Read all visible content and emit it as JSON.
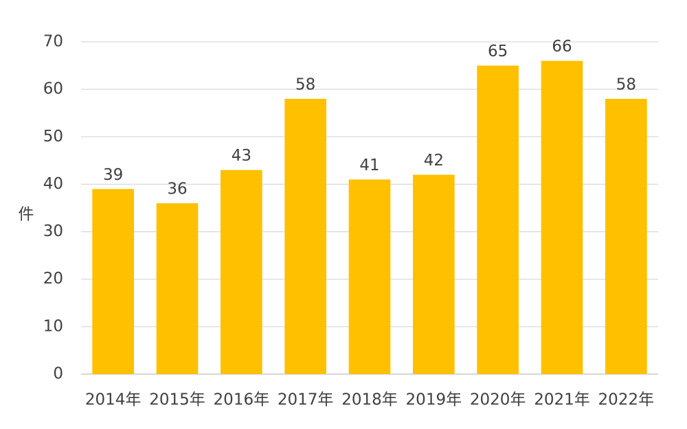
{
  "chart_data": {
    "type": "bar",
    "categories": [
      "2014年",
      "2015年",
      "2016年",
      "2017年",
      "2018年",
      "2019年",
      "2020年",
      "2021年",
      "2022年"
    ],
    "values": [
      39,
      36,
      43,
      58,
      41,
      42,
      65,
      66,
      58
    ],
    "title": "",
    "xlabel": "",
    "ylabel": "件",
    "ylim": [
      0,
      70
    ],
    "yticks": [
      0,
      10,
      20,
      30,
      40,
      50,
      60,
      70
    ],
    "grid": true,
    "data_labels": true,
    "bar_color": "#FFC000",
    "gridline_color": "#d9d9d9",
    "text_color": "#404040"
  }
}
